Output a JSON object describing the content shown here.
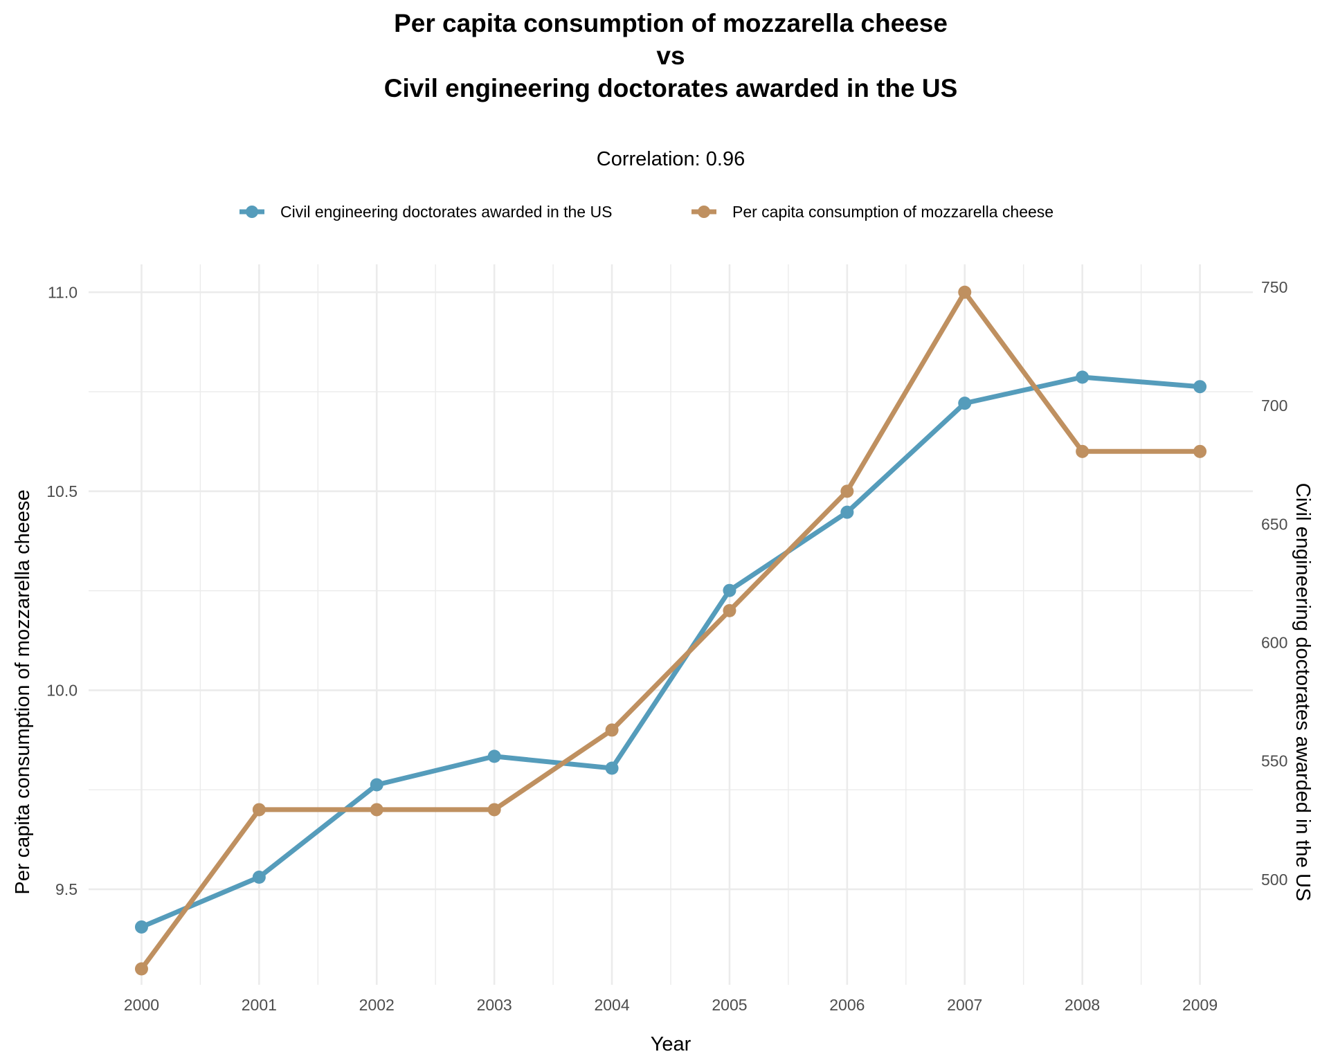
{
  "chart_data": {
    "type": "line",
    "title_lines": [
      "Per capita consumption of mozzarella cheese",
      "vs",
      "Civil engineering doctorates awarded in the US"
    ],
    "subtitle": "Correlation: 0.96",
    "xlabel": "Year",
    "ylabel_left": "Per capita consumption of mozzarella cheese",
    "ylabel_right": "Civil engineering doctorates awarded in the US",
    "x": [
      2000,
      2001,
      2002,
      2003,
      2004,
      2005,
      2006,
      2007,
      2008,
      2009
    ],
    "x_tick_labels": [
      "2000",
      "2001",
      "2002",
      "2003",
      "2004",
      "2005",
      "2006",
      "2007",
      "2008",
      "2009"
    ],
    "y_left_ticks": [
      "9.5",
      "10.0",
      "10.5",
      "11.0"
    ],
    "y_left_tick_values": [
      9.5,
      10.0,
      10.5,
      11.0
    ],
    "y_right_ticks": [
      "500",
      "550",
      "600",
      "650",
      "700",
      "750"
    ],
    "y_right_tick_values": [
      500,
      550,
      600,
      650,
      700,
      750
    ],
    "ylim_left": [
      9.26,
      11.07
    ],
    "ylim_right": [
      455.6,
      759.6
    ],
    "grid": true,
    "legend_position": "top",
    "series": [
      {
        "name": "Civil engineering doctorates awarded in the US",
        "axis": "right",
        "color": "#559cbb",
        "values": [
          480,
          501,
          540,
          552,
          547,
          622,
          655,
          701,
          712,
          708
        ]
      },
      {
        "name": "Per capita consumption of mozzarella cheese",
        "axis": "left",
        "color": "#bf9060",
        "values": [
          9.3,
          9.7,
          9.7,
          9.7,
          9.9,
          10.2,
          10.5,
          11.0,
          10.6,
          10.6
        ]
      }
    ]
  }
}
